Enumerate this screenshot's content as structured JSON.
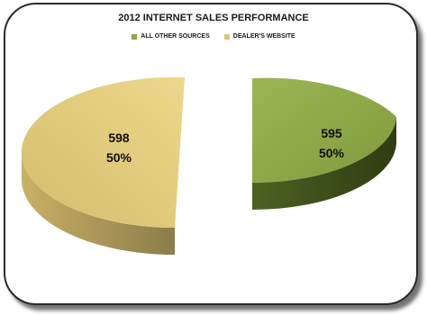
{
  "chart_data": {
    "type": "pie",
    "title": "2012 INTERNET SALES PERFORMANCE",
    "legend_placement": "top",
    "slices": [
      {
        "name": "ALL OTHER SOURCES",
        "value": 595,
        "percent": "50%",
        "color": "#8fa84a"
      },
      {
        "name": "DEALER'S WEBSITE",
        "value": 598,
        "percent": "50%",
        "color": "#dcc67a"
      }
    ]
  }
}
